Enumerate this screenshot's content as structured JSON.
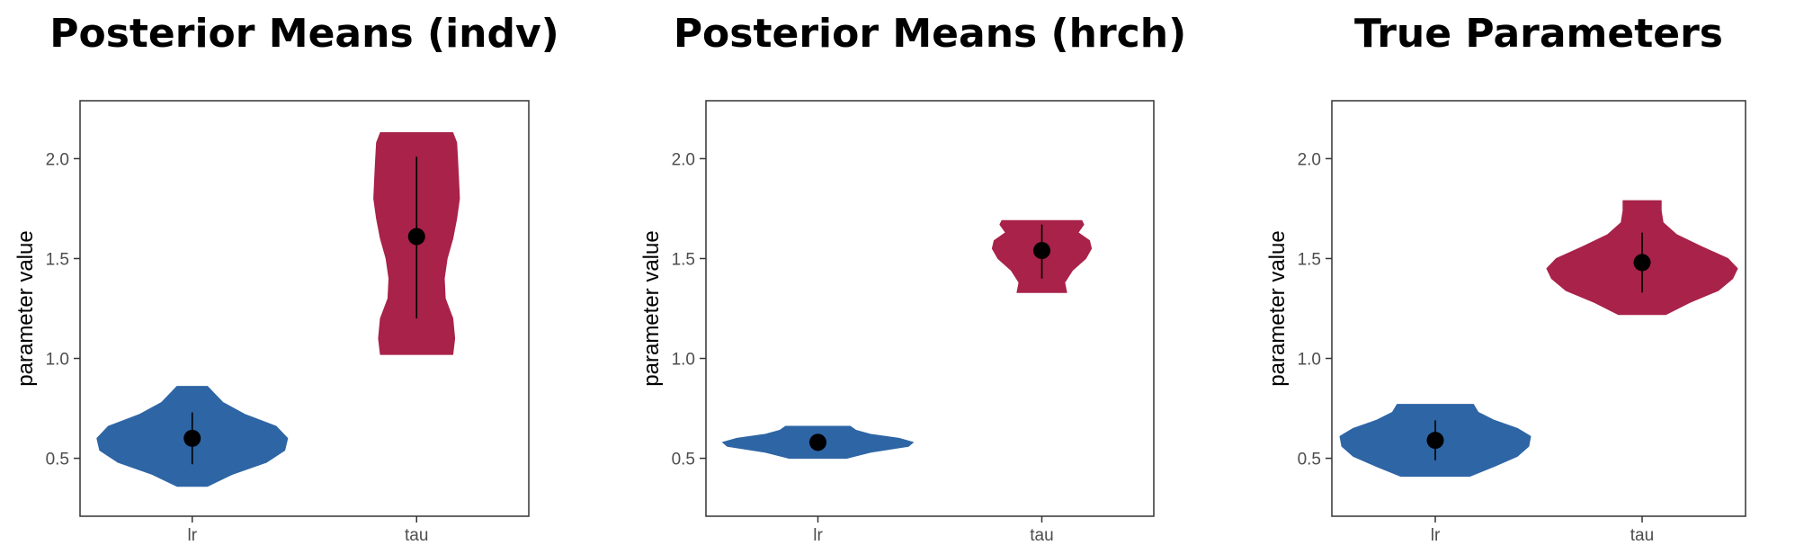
{
  "colors": {
    "lr": "#2e65a5",
    "tau": "#a8224a",
    "dot": "#000000",
    "frame": "#333333"
  },
  "chart_data": [
    {
      "type": "violin",
      "title": "Posterior Means (indv)",
      "xlabel": "",
      "ylabel": "parameter value",
      "ylim": [
        0.21,
        2.29
      ],
      "yticks": [
        0.5,
        1.0,
        1.5,
        2.0
      ],
      "ytick_labels": [
        "0.5",
        "1.0",
        "1.5",
        "2.0"
      ],
      "categories": [
        "lr",
        "tau"
      ],
      "grid": false,
      "series": [
        {
          "category": "lr",
          "min": 0.36,
          "max": 0.86,
          "mean": 0.6,
          "lower": 0.47,
          "upper": 0.73,
          "density": [
            [
              0.36,
              0.16
            ],
            [
              0.42,
              0.42
            ],
            [
              0.48,
              0.78
            ],
            [
              0.54,
              0.97
            ],
            [
              0.6,
              1.0
            ],
            [
              0.66,
              0.88
            ],
            [
              0.72,
              0.55
            ],
            [
              0.78,
              0.32
            ],
            [
              0.83,
              0.22
            ],
            [
              0.86,
              0.16
            ]
          ]
        },
        {
          "category": "tau",
          "min": 1.02,
          "max": 2.13,
          "mean": 1.61,
          "lower": 1.2,
          "upper": 2.01,
          "density": [
            [
              1.02,
              0.38
            ],
            [
              1.1,
              0.4
            ],
            [
              1.2,
              0.38
            ],
            [
              1.3,
              0.3
            ],
            [
              1.4,
              0.29
            ],
            [
              1.5,
              0.32
            ],
            [
              1.6,
              0.38
            ],
            [
              1.7,
              0.42
            ],
            [
              1.8,
              0.45
            ],
            [
              1.9,
              0.44
            ],
            [
              2.0,
              0.43
            ],
            [
              2.08,
              0.42
            ],
            [
              2.13,
              0.38
            ]
          ]
        }
      ]
    },
    {
      "type": "violin",
      "title": "Posterior Means (hrch)",
      "xlabel": "",
      "ylabel": "parameter value",
      "ylim": [
        0.21,
        2.29
      ],
      "yticks": [
        0.5,
        1.0,
        1.5,
        2.0
      ],
      "ytick_labels": [
        "0.5",
        "1.0",
        "1.5",
        "2.0"
      ],
      "categories": [
        "lr",
        "tau"
      ],
      "grid": false,
      "series": [
        {
          "category": "lr",
          "min": 0.5,
          "max": 0.66,
          "mean": 0.58,
          "lower": 0.55,
          "upper": 0.61,
          "density": [
            [
              0.5,
              0.3
            ],
            [
              0.53,
              0.55
            ],
            [
              0.56,
              0.95
            ],
            [
              0.58,
              1.0
            ],
            [
              0.6,
              0.85
            ],
            [
              0.62,
              0.55
            ],
            [
              0.64,
              0.4
            ],
            [
              0.66,
              0.34
            ]
          ]
        },
        {
          "category": "tau",
          "min": 1.33,
          "max": 1.69,
          "mean": 1.54,
          "lower": 1.4,
          "upper": 1.67,
          "density": [
            [
              1.33,
              0.26
            ],
            [
              1.38,
              0.24
            ],
            [
              1.44,
              0.32
            ],
            [
              1.5,
              0.46
            ],
            [
              1.55,
              0.52
            ],
            [
              1.59,
              0.5
            ],
            [
              1.63,
              0.38
            ],
            [
              1.67,
              0.44
            ],
            [
              1.69,
              0.42
            ]
          ]
        }
      ]
    },
    {
      "type": "violin",
      "title": "True Parameters",
      "xlabel": "",
      "ylabel": "parameter value",
      "ylim": [
        0.21,
        2.29
      ],
      "yticks": [
        0.5,
        1.0,
        1.5,
        2.0
      ],
      "ytick_labels": [
        "0.5",
        "1.0",
        "1.5",
        "2.0"
      ],
      "categories": [
        "lr",
        "tau"
      ],
      "grid": false,
      "series": [
        {
          "category": "lr",
          "min": 0.41,
          "max": 0.77,
          "mean": 0.59,
          "lower": 0.49,
          "upper": 0.69,
          "density": [
            [
              0.41,
              0.36
            ],
            [
              0.46,
              0.62
            ],
            [
              0.51,
              0.86
            ],
            [
              0.56,
              0.98
            ],
            [
              0.61,
              1.0
            ],
            [
              0.65,
              0.86
            ],
            [
              0.69,
              0.62
            ],
            [
              0.73,
              0.45
            ],
            [
              0.77,
              0.4
            ]
          ]
        },
        {
          "category": "tau",
          "min": 1.22,
          "max": 1.79,
          "mean": 1.48,
          "lower": 1.33,
          "upper": 1.63,
          "density": [
            [
              1.22,
              0.25
            ],
            [
              1.28,
              0.5
            ],
            [
              1.34,
              0.8
            ],
            [
              1.4,
              0.95
            ],
            [
              1.45,
              1.0
            ],
            [
              1.5,
              0.9
            ],
            [
              1.56,
              0.62
            ],
            [
              1.62,
              0.36
            ],
            [
              1.68,
              0.22
            ],
            [
              1.74,
              0.2
            ],
            [
              1.79,
              0.2
            ]
          ]
        }
      ]
    }
  ]
}
